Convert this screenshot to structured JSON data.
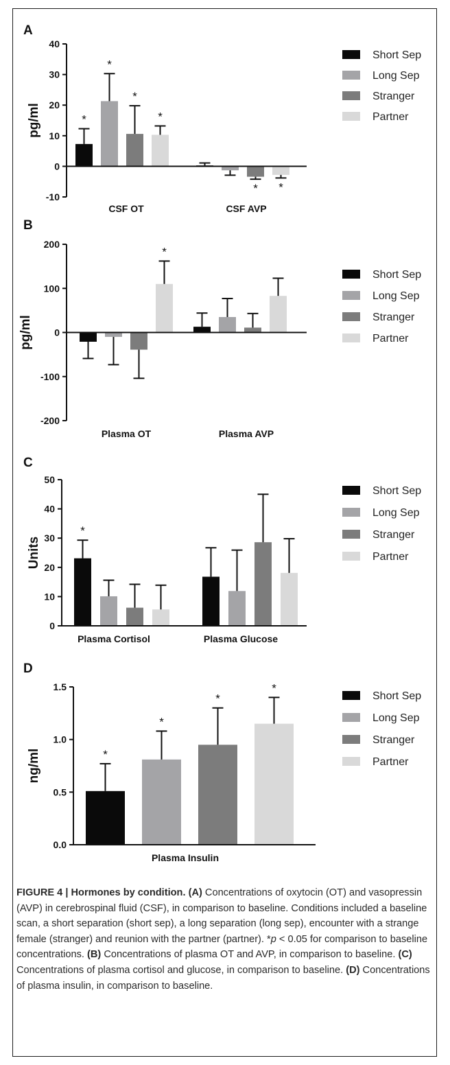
{
  "chart_data": [
    {
      "panel": "A",
      "type": "bar",
      "ylabel": "pg/ml",
      "ylim": [
        -10,
        40
      ],
      "yticks": [
        -10,
        0,
        10,
        20,
        30,
        40
      ],
      "categories": [
        "CSF OT",
        "CSF AVP"
      ],
      "series": [
        {
          "name": "Short Sep",
          "color": "#0a0a0a",
          "values": [
            7.3,
            0.3
          ],
          "errors": [
            5.0,
            0.8
          ],
          "significant": [
            true,
            false
          ]
        },
        {
          "name": "Long Sep",
          "color": "#a4a4a7",
          "values": [
            21.3,
            -1.3
          ],
          "errors": [
            9.0,
            1.6
          ],
          "significant": [
            true,
            false
          ]
        },
        {
          "name": "Stranger",
          "color": "#7c7c7c",
          "values": [
            10.6,
            -3.4
          ],
          "errors": [
            9.2,
            0.8
          ],
          "significant": [
            true,
            true
          ]
        },
        {
          "name": "Partner",
          "color": "#d9d9d9",
          "values": [
            10.3,
            -2.8
          ],
          "errors": [
            2.9,
            1.0
          ],
          "significant": [
            true,
            true
          ]
        }
      ],
      "legend_position": "right"
    },
    {
      "panel": "B",
      "type": "bar",
      "ylabel": "pg/ml",
      "ylim": [
        -200,
        200
      ],
      "yticks": [
        -200,
        -100,
        0,
        100,
        200
      ],
      "categories": [
        "Plasma OT",
        "Plasma AVP"
      ],
      "series": [
        {
          "name": "Short Sep",
          "color": "#0a0a0a",
          "values": [
            -21,
            13
          ],
          "errors": [
            38,
            31
          ],
          "significant": [
            false,
            false
          ]
        },
        {
          "name": "Long Sep",
          "color": "#a4a4a7",
          "values": [
            -10,
            35
          ],
          "errors": [
            63,
            42
          ],
          "significant": [
            false,
            false
          ]
        },
        {
          "name": "Stranger",
          "color": "#7c7c7c",
          "values": [
            -39,
            11
          ],
          "errors": [
            65,
            32
          ],
          "significant": [
            false,
            false
          ]
        },
        {
          "name": "Partner",
          "color": "#d9d9d9",
          "values": [
            110,
            83
          ],
          "errors": [
            52,
            40
          ],
          "significant": [
            true,
            false
          ]
        }
      ],
      "legend_position": "right"
    },
    {
      "panel": "C",
      "type": "bar",
      "ylabel": "Units",
      "ylim": [
        0,
        50
      ],
      "yticks": [
        0,
        10,
        20,
        30,
        40,
        50
      ],
      "categories": [
        "Plasma Cortisol",
        "Plasma Glucose"
      ],
      "series": [
        {
          "name": "Short Sep",
          "color": "#0a0a0a",
          "values": [
            23.1,
            16.8
          ],
          "errors": [
            6.2,
            9.9
          ],
          "significant": [
            true,
            false
          ]
        },
        {
          "name": "Long Sep",
          "color": "#a4a4a7",
          "values": [
            10.1,
            11.9
          ],
          "errors": [
            5.5,
            14.0
          ],
          "significant": [
            false,
            false
          ]
        },
        {
          "name": "Stranger",
          "color": "#7c7c7c",
          "values": [
            6.2,
            28.6
          ],
          "errors": [
            8.0,
            16.4
          ],
          "significant": [
            false,
            false
          ]
        },
        {
          "name": "Partner",
          "color": "#d9d9d9",
          "values": [
            5.6,
            18.1
          ],
          "errors": [
            8.3,
            11.7
          ],
          "significant": [
            false,
            false
          ]
        }
      ],
      "legend_position": "right"
    },
    {
      "panel": "D",
      "type": "bar",
      "ylabel": "ng/ml",
      "ylim": [
        0,
        1.5
      ],
      "yticks": [
        0.0,
        0.5,
        1.0,
        1.5
      ],
      "categories": [
        "Plasma Insulin"
      ],
      "series": [
        {
          "name": "Short Sep",
          "color": "#0a0a0a",
          "values": [
            0.51
          ],
          "errors": [
            0.26
          ],
          "significant": [
            true
          ]
        },
        {
          "name": "Long Sep",
          "color": "#a4a4a7",
          "values": [
            0.81
          ],
          "errors": [
            0.27
          ],
          "significant": [
            true
          ]
        },
        {
          "name": "Stranger",
          "color": "#7c7c7c",
          "values": [
            0.95
          ],
          "errors": [
            0.35
          ],
          "significant": [
            true
          ]
        },
        {
          "name": "Partner",
          "color": "#d9d9d9",
          "values": [
            1.15
          ],
          "errors": [
            0.25
          ],
          "significant": [
            true
          ]
        }
      ],
      "legend_position": "right"
    }
  ],
  "tick_labels": {
    "A": [
      "-10",
      "0",
      "10",
      "20",
      "30",
      "40"
    ],
    "B": [
      "-200",
      "-100",
      "0",
      "100",
      "200"
    ],
    "C": [
      "0",
      "10",
      "20",
      "30",
      "40",
      "50"
    ],
    "D": [
      "0.0",
      "0.5",
      "1.0",
      "1.5"
    ]
  },
  "significance_marker": "*",
  "caption": {
    "figure_label": "FIGURE 4 | Hormones by condition.",
    "part_a_label": "(A)",
    "part_a_text": " Concentrations of oxytocin (OT) and vasopressin (AVP) in cerebrospinal fluid (CSF), in comparison to baseline. Conditions included a baseline scan, a short separation (short sep), a long separation (long sep), encounter with a strange female (stranger) and reunion with the partner (partner). *",
    "p_symbol": "p",
    "sig_text": " < 0.05 for comparison to baseline concentrations. ",
    "part_b_label": "(B)",
    "part_b_text": " Concentrations of plasma OT and AVP, in comparison to baseline. ",
    "part_c_label": "(C)",
    "part_c_text": " Concentrations of plasma cortisol and glucose, in comparison to baseline. ",
    "part_d_label": "(D)",
    "part_d_text": " Concentrations of plasma insulin, in comparison to baseline."
  }
}
